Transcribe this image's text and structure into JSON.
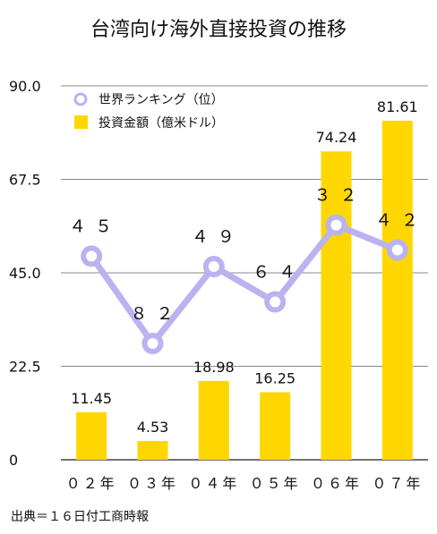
{
  "chart_data": {
    "type": "bar",
    "title": "台湾向け海外直接投資の推移",
    "categories": [
      "０２年",
      "０３年",
      "０４年",
      "０５年",
      "０６年",
      "０７年"
    ],
    "ylim": [
      0,
      90
    ],
    "yticks": [
      "0",
      "22.5",
      "45.0",
      "67.5",
      "90.0"
    ],
    "ytick_values": [
      0,
      22.5,
      45,
      67.5,
      90
    ],
    "grid": true,
    "legend_position": "top-left",
    "series": [
      {
        "name": "投資金額（億米ドル）",
        "type": "bar",
        "color": "#FFD700",
        "values": [
          11.45,
          4.53,
          18.98,
          16.25,
          74.24,
          81.61
        ],
        "labels": [
          "11.45",
          "4.53",
          "18.98",
          "16.25",
          "74.24",
          "81.61"
        ]
      },
      {
        "name": "世界ランキング（位）",
        "type": "line",
        "color": "#B9B3F0",
        "values": [
          45,
          82,
          49,
          64,
          32,
          42
        ],
        "labels": [
          "４５",
          "８２",
          "４９",
          "６４",
          "３２",
          "４２"
        ],
        "plot_values": [
          49,
          28,
          46.5,
          38,
          56.5,
          50.5
        ]
      }
    ],
    "source": "出典＝１６日付工商時報"
  }
}
